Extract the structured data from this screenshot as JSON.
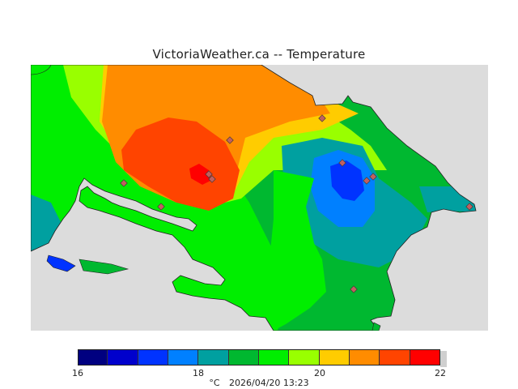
{
  "title": "VictoriaWeather.ca -- Temperature",
  "legend": {
    "colors": [
      "#000080",
      "#0000cc",
      "#0033ff",
      "#0080ff",
      "#00a0a0",
      "#00b830",
      "#00ee00",
      "#99ff00",
      "#ffcc00",
      "#ff8c00",
      "#ff4400",
      "#ff0000"
    ],
    "ticks": [
      "16",
      "18",
      "20",
      "22"
    ],
    "unit": "°C",
    "timestamp": "2026/04/20 13:23"
  },
  "map": {
    "water_color": "#dcdcdc",
    "station_marker_color": "#c06060"
  }
}
